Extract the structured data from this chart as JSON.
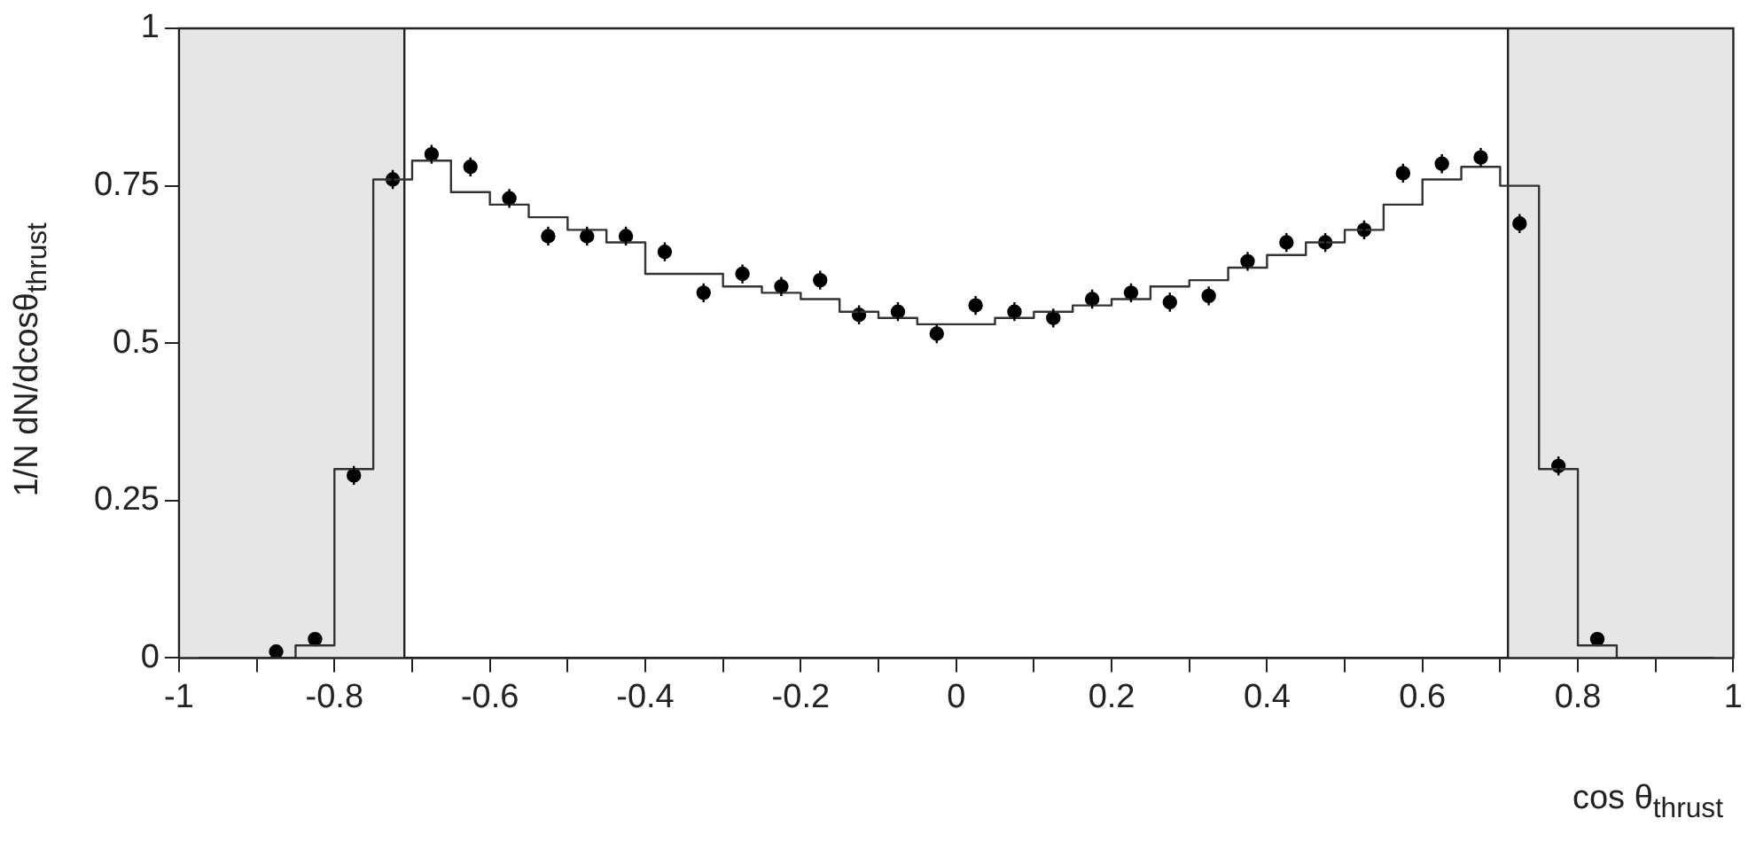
{
  "chart_data": {
    "type": "scatter",
    "xlabel": "cos θ$_{thrust}$",
    "ylabel": "1/N dN/dcosθ$_{thrust}$",
    "xlim": [
      -1,
      1
    ],
    "ylim": [
      0,
      1
    ],
    "xticks": [
      -1,
      {
        "value": -0.9,
        "label": null
      },
      -0.8,
      {
        "value": -0.7,
        "label": null
      },
      -0.6,
      {
        "value": -0.5,
        "label": null
      },
      -0.4,
      {
        "value": -0.3,
        "label": null
      },
      -0.2,
      {
        "value": -0.1,
        "label": null
      },
      0,
      {
        "value": 0.1,
        "label": null
      },
      0.2,
      {
        "value": 0.3,
        "label": null
      },
      0.4,
      {
        "value": 0.5,
        "label": null
      },
      0.6,
      {
        "value": 0.7,
        "label": null
      },
      0.8,
      {
        "value": 0.9,
        "label": null
      },
      1
    ],
    "yticks": [
      0,
      0.25,
      0.5,
      0.75,
      1
    ],
    "grid": false,
    "legend": false,
    "marker": "circle",
    "bands": [
      {
        "axis": "x",
        "from": -1,
        "to": -0.71,
        "color": "#e6e6e6"
      },
      {
        "axis": "x",
        "from": 0.71,
        "to": 1,
        "color": "#e6e6e6"
      }
    ],
    "ref_lines": [
      {
        "axis": "x",
        "value": -0.71,
        "color": "#222222"
      },
      {
        "axis": "x",
        "value": 0.71,
        "color": "#222222"
      }
    ],
    "series": [
      {
        "type": "step",
        "color": "#333333",
        "line_style": "solid",
        "marker": "none",
        "x": [
          -0.975,
          -0.925,
          -0.875,
          -0.825,
          -0.775,
          -0.725,
          -0.675,
          -0.625,
          -0.575,
          -0.525,
          -0.475,
          -0.425,
          -0.375,
          -0.325,
          -0.275,
          -0.225,
          -0.175,
          -0.125,
          -0.075,
          -0.025,
          0.025,
          0.075,
          0.125,
          0.175,
          0.225,
          0.275,
          0.325,
          0.375,
          0.425,
          0.475,
          0.525,
          0.575,
          0.625,
          0.675,
          0.725,
          0.775,
          0.825,
          0.875,
          0.925,
          0.975
        ],
        "values": [
          0,
          0,
          0,
          0.02,
          0.3,
          0.76,
          0.79,
          0.74,
          0.72,
          0.7,
          0.68,
          0.66,
          0.61,
          0.61,
          0.59,
          0.58,
          0.57,
          0.55,
          0.54,
          0.53,
          0.53,
          0.54,
          0.55,
          0.56,
          0.57,
          0.59,
          0.6,
          0.62,
          0.64,
          0.66,
          0.68,
          0.72,
          0.76,
          0.78,
          0.75,
          0.3,
          0.02,
          0,
          0,
          0
        ]
      },
      {
        "type": "scatter",
        "color": "#000000",
        "x": [
          -0.875,
          -0.825,
          -0.775,
          -0.725,
          -0.675,
          -0.625,
          -0.575,
          -0.525,
          -0.475,
          -0.425,
          -0.375,
          -0.325,
          -0.275,
          -0.225,
          -0.175,
          -0.125,
          -0.075,
          -0.025,
          0.025,
          0.075,
          0.125,
          0.175,
          0.225,
          0.275,
          0.325,
          0.375,
          0.425,
          0.475,
          0.525,
          0.575,
          0.625,
          0.675,
          0.725,
          0.775,
          0.825
        ],
        "values": [
          0.01,
          0.03,
          0.29,
          0.76,
          0.8,
          0.78,
          0.73,
          0.67,
          0.67,
          0.67,
          0.645,
          0.58,
          0.61,
          0.59,
          0.6,
          0.545,
          0.55,
          0.515,
          0.56,
          0.55,
          0.54,
          0.57,
          0.58,
          0.565,
          0.575,
          0.63,
          0.66,
          0.66,
          0.68,
          0.77,
          0.785,
          0.795,
          0.69,
          0.305,
          0.03
        ],
        "errors": [
          null,
          null,
          0.015,
          0.015,
          0.015,
          0.015,
          0.015,
          0.015,
          0.015,
          0.015,
          0.015,
          0.015,
          0.015,
          0.015,
          0.015,
          0.015,
          0.015,
          0.015,
          0.015,
          0.015,
          0.015,
          0.015,
          0.015,
          0.015,
          0.015,
          0.015,
          0.015,
          0.015,
          0.015,
          0.015,
          0.015,
          0.015,
          0.015,
          0.015,
          null
        ]
      }
    ]
  }
}
